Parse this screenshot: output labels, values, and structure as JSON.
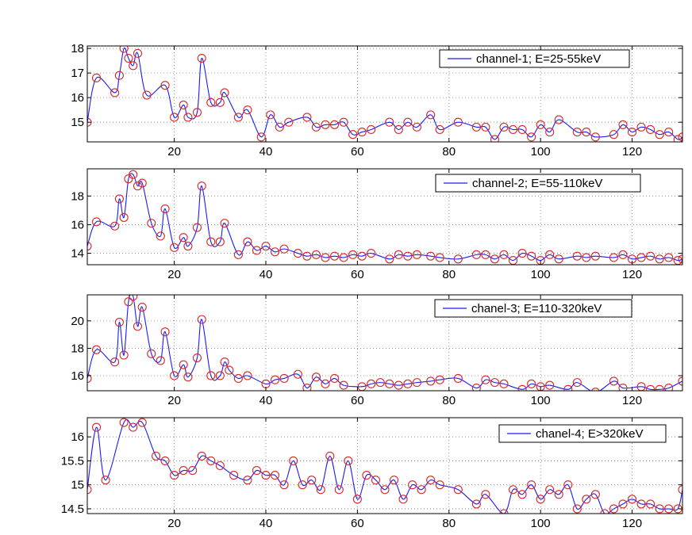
{
  "chart_data": [
    {
      "type": "line",
      "title": "",
      "xlabel": "",
      "ylabel": "",
      "xlim": [
        1,
        131
      ],
      "ylim": [
        14.2,
        18.1
      ],
      "xticks": [
        20,
        40,
        60,
        80,
        100,
        120
      ],
      "yticks": [
        15,
        16,
        17,
        18
      ],
      "grid": true,
      "legend_position": "top-right",
      "series": [
        {
          "name": "channel-1; E=25-55keV",
          "x": [
            1,
            3,
            7,
            8,
            9,
            10,
            11,
            12,
            14,
            18,
            20,
            22,
            23,
            25,
            26,
            28,
            30,
            31,
            34,
            36,
            39,
            41,
            43,
            45,
            49,
            51,
            53,
            55,
            57,
            59,
            61,
            63,
            67,
            69,
            71,
            73,
            76,
            78,
            82,
            86,
            88,
            90,
            92,
            94,
            96,
            98,
            100,
            102,
            104,
            108,
            110,
            112,
            116,
            118,
            120,
            122,
            124,
            126,
            128,
            130,
            131
          ],
          "values": [
            15.0,
            16.8,
            16.2,
            16.9,
            18.0,
            17.6,
            17.3,
            17.8,
            16.1,
            16.5,
            15.2,
            15.7,
            15.2,
            15.4,
            17.6,
            15.8,
            15.8,
            16.2,
            15.2,
            15.5,
            14.4,
            15.3,
            14.8,
            15.0,
            15.2,
            14.8,
            14.9,
            14.9,
            15.0,
            14.5,
            14.6,
            14.7,
            15.0,
            14.7,
            15.0,
            14.8,
            15.3,
            14.7,
            15.0,
            14.8,
            14.8,
            14.3,
            14.8,
            14.7,
            14.7,
            14.4,
            14.9,
            14.6,
            15.1,
            14.6,
            14.6,
            14.4,
            14.5,
            14.9,
            14.6,
            14.8,
            14.7,
            14.5,
            14.6,
            14.3,
            14.4
          ]
        }
      ]
    },
    {
      "type": "line",
      "title": "",
      "xlabel": "",
      "ylabel": "",
      "xlim": [
        1,
        131
      ],
      "ylim": [
        13.2,
        19.9
      ],
      "xticks": [
        20,
        40,
        60,
        80,
        100,
        120
      ],
      "yticks": [
        14,
        16,
        18
      ],
      "grid": true,
      "legend_position": "top-right",
      "series": [
        {
          "name": "channel-2; E=55-110keV",
          "x": [
            1,
            3,
            7,
            8,
            9,
            10,
            11,
            12,
            13,
            15,
            17,
            18,
            20,
            22,
            23,
            25,
            26,
            28,
            30,
            31,
            34,
            36,
            38,
            40,
            42,
            44,
            47,
            49,
            51,
            53,
            55,
            57,
            59,
            61,
            63,
            67,
            69,
            71,
            73,
            76,
            78,
            82,
            86,
            88,
            90,
            92,
            94,
            96,
            98,
            100,
            102,
            104,
            108,
            110,
            112,
            116,
            118,
            120,
            122,
            124,
            126,
            128,
            130,
            131
          ],
          "values": [
            14.5,
            16.2,
            15.9,
            17.8,
            16.5,
            19.2,
            19.5,
            18.7,
            18.9,
            16.1,
            15.2,
            17.1,
            14.4,
            15.1,
            14.5,
            15.8,
            18.7,
            14.8,
            14.8,
            16.1,
            13.9,
            14.8,
            14.2,
            14.5,
            14.1,
            14.3,
            14.0,
            13.8,
            13.9,
            13.7,
            13.8,
            13.7,
            13.9,
            13.8,
            14.0,
            13.6,
            13.9,
            13.8,
            13.9,
            13.8,
            13.7,
            13.6,
            13.9,
            13.9,
            13.6,
            13.9,
            13.5,
            14.0,
            13.8,
            13.5,
            13.9,
            13.6,
            13.8,
            13.7,
            13.8,
            13.7,
            13.9,
            13.6,
            13.7,
            13.8,
            13.6,
            13.7,
            13.5,
            13.6
          ]
        }
      ]
    },
    {
      "type": "line",
      "title": "",
      "xlabel": "",
      "ylabel": "",
      "xlim": [
        1,
        131
      ],
      "ylim": [
        14.9,
        21.9
      ],
      "xticks": [
        20,
        40,
        60,
        80,
        100,
        120
      ],
      "yticks": [
        16,
        18,
        20
      ],
      "grid": true,
      "legend_position": "top-right",
      "series": [
        {
          "name": "chanel-3; E=110-320keV",
          "x": [
            1,
            3,
            7,
            8,
            9,
            10,
            11,
            12,
            13,
            15,
            17,
            18,
            20,
            22,
            23,
            25,
            26,
            28,
            30,
            31,
            32,
            34,
            36,
            40,
            42,
            44,
            47,
            49,
            51,
            53,
            55,
            57,
            61,
            63,
            65,
            67,
            69,
            71,
            73,
            76,
            78,
            82,
            86,
            88,
            90,
            92,
            96,
            98,
            100,
            102,
            106,
            108,
            112,
            116,
            118,
            122,
            124,
            126,
            128,
            131
          ],
          "values": [
            15.8,
            17.9,
            17.0,
            19.9,
            17.5,
            21.4,
            21.8,
            19.6,
            21.0,
            17.6,
            17.1,
            19.2,
            16.0,
            16.8,
            15.9,
            17.3,
            20.1,
            16.0,
            16.0,
            17.0,
            16.4,
            15.8,
            16.0,
            15.4,
            15.7,
            15.8,
            16.1,
            15.1,
            15.9,
            15.4,
            15.8,
            15.3,
            15.2,
            15.4,
            15.5,
            15.4,
            15.3,
            15.4,
            15.5,
            15.6,
            15.7,
            15.8,
            15.1,
            15.7,
            15.5,
            15.4,
            15.0,
            15.4,
            15.2,
            15.3,
            15.0,
            15.5,
            14.8,
            15.6,
            15.1,
            15.2,
            15.0,
            15.0,
            15.1,
            15.6
          ]
        }
      ]
    },
    {
      "type": "line",
      "title": "",
      "xlabel": "",
      "ylabel": "",
      "xlim": [
        1,
        131
      ],
      "ylim": [
        14.4,
        16.4
      ],
      "xticks": [
        20,
        40,
        60,
        80,
        100,
        120
      ],
      "yticks": [
        14.5,
        15,
        15.5,
        16
      ],
      "ytick_labels": [
        "14.5",
        "15",
        "15.5",
        "16"
      ],
      "grid": true,
      "legend_position": "top-right",
      "series": [
        {
          "name": "chanel-4; E>320keV",
          "x": [
            1,
            3,
            5,
            9,
            11,
            13,
            16,
            18,
            20,
            22,
            24,
            26,
            28,
            30,
            33,
            36,
            38,
            40,
            42,
            44,
            46,
            48,
            50,
            52,
            54,
            56,
            58,
            60,
            62,
            64,
            66,
            68,
            70,
            72,
            74,
            76,
            78,
            82,
            86,
            88,
            92,
            94,
            96,
            98,
            100,
            102,
            104,
            106,
            108,
            110,
            112,
            114,
            116,
            118,
            120,
            122,
            124,
            126,
            128,
            130,
            131
          ],
          "values": [
            14.9,
            16.2,
            15.1,
            16.3,
            16.2,
            16.3,
            15.6,
            15.5,
            15.2,
            15.3,
            15.3,
            15.6,
            15.5,
            15.4,
            15.2,
            15.1,
            15.3,
            15.2,
            15.2,
            15.0,
            15.5,
            15.0,
            15.1,
            14.9,
            15.6,
            14.9,
            15.5,
            14.7,
            15.2,
            15.1,
            14.9,
            15.1,
            14.7,
            15.0,
            14.9,
            15.1,
            15.0,
            14.9,
            14.6,
            14.8,
            14.4,
            14.9,
            14.8,
            15.0,
            14.7,
            14.9,
            14.8,
            15.0,
            14.5,
            14.7,
            14.8,
            14.4,
            14.5,
            14.6,
            14.7,
            14.6,
            14.6,
            14.5,
            14.5,
            14.5,
            14.9
          ]
        }
      ]
    }
  ]
}
